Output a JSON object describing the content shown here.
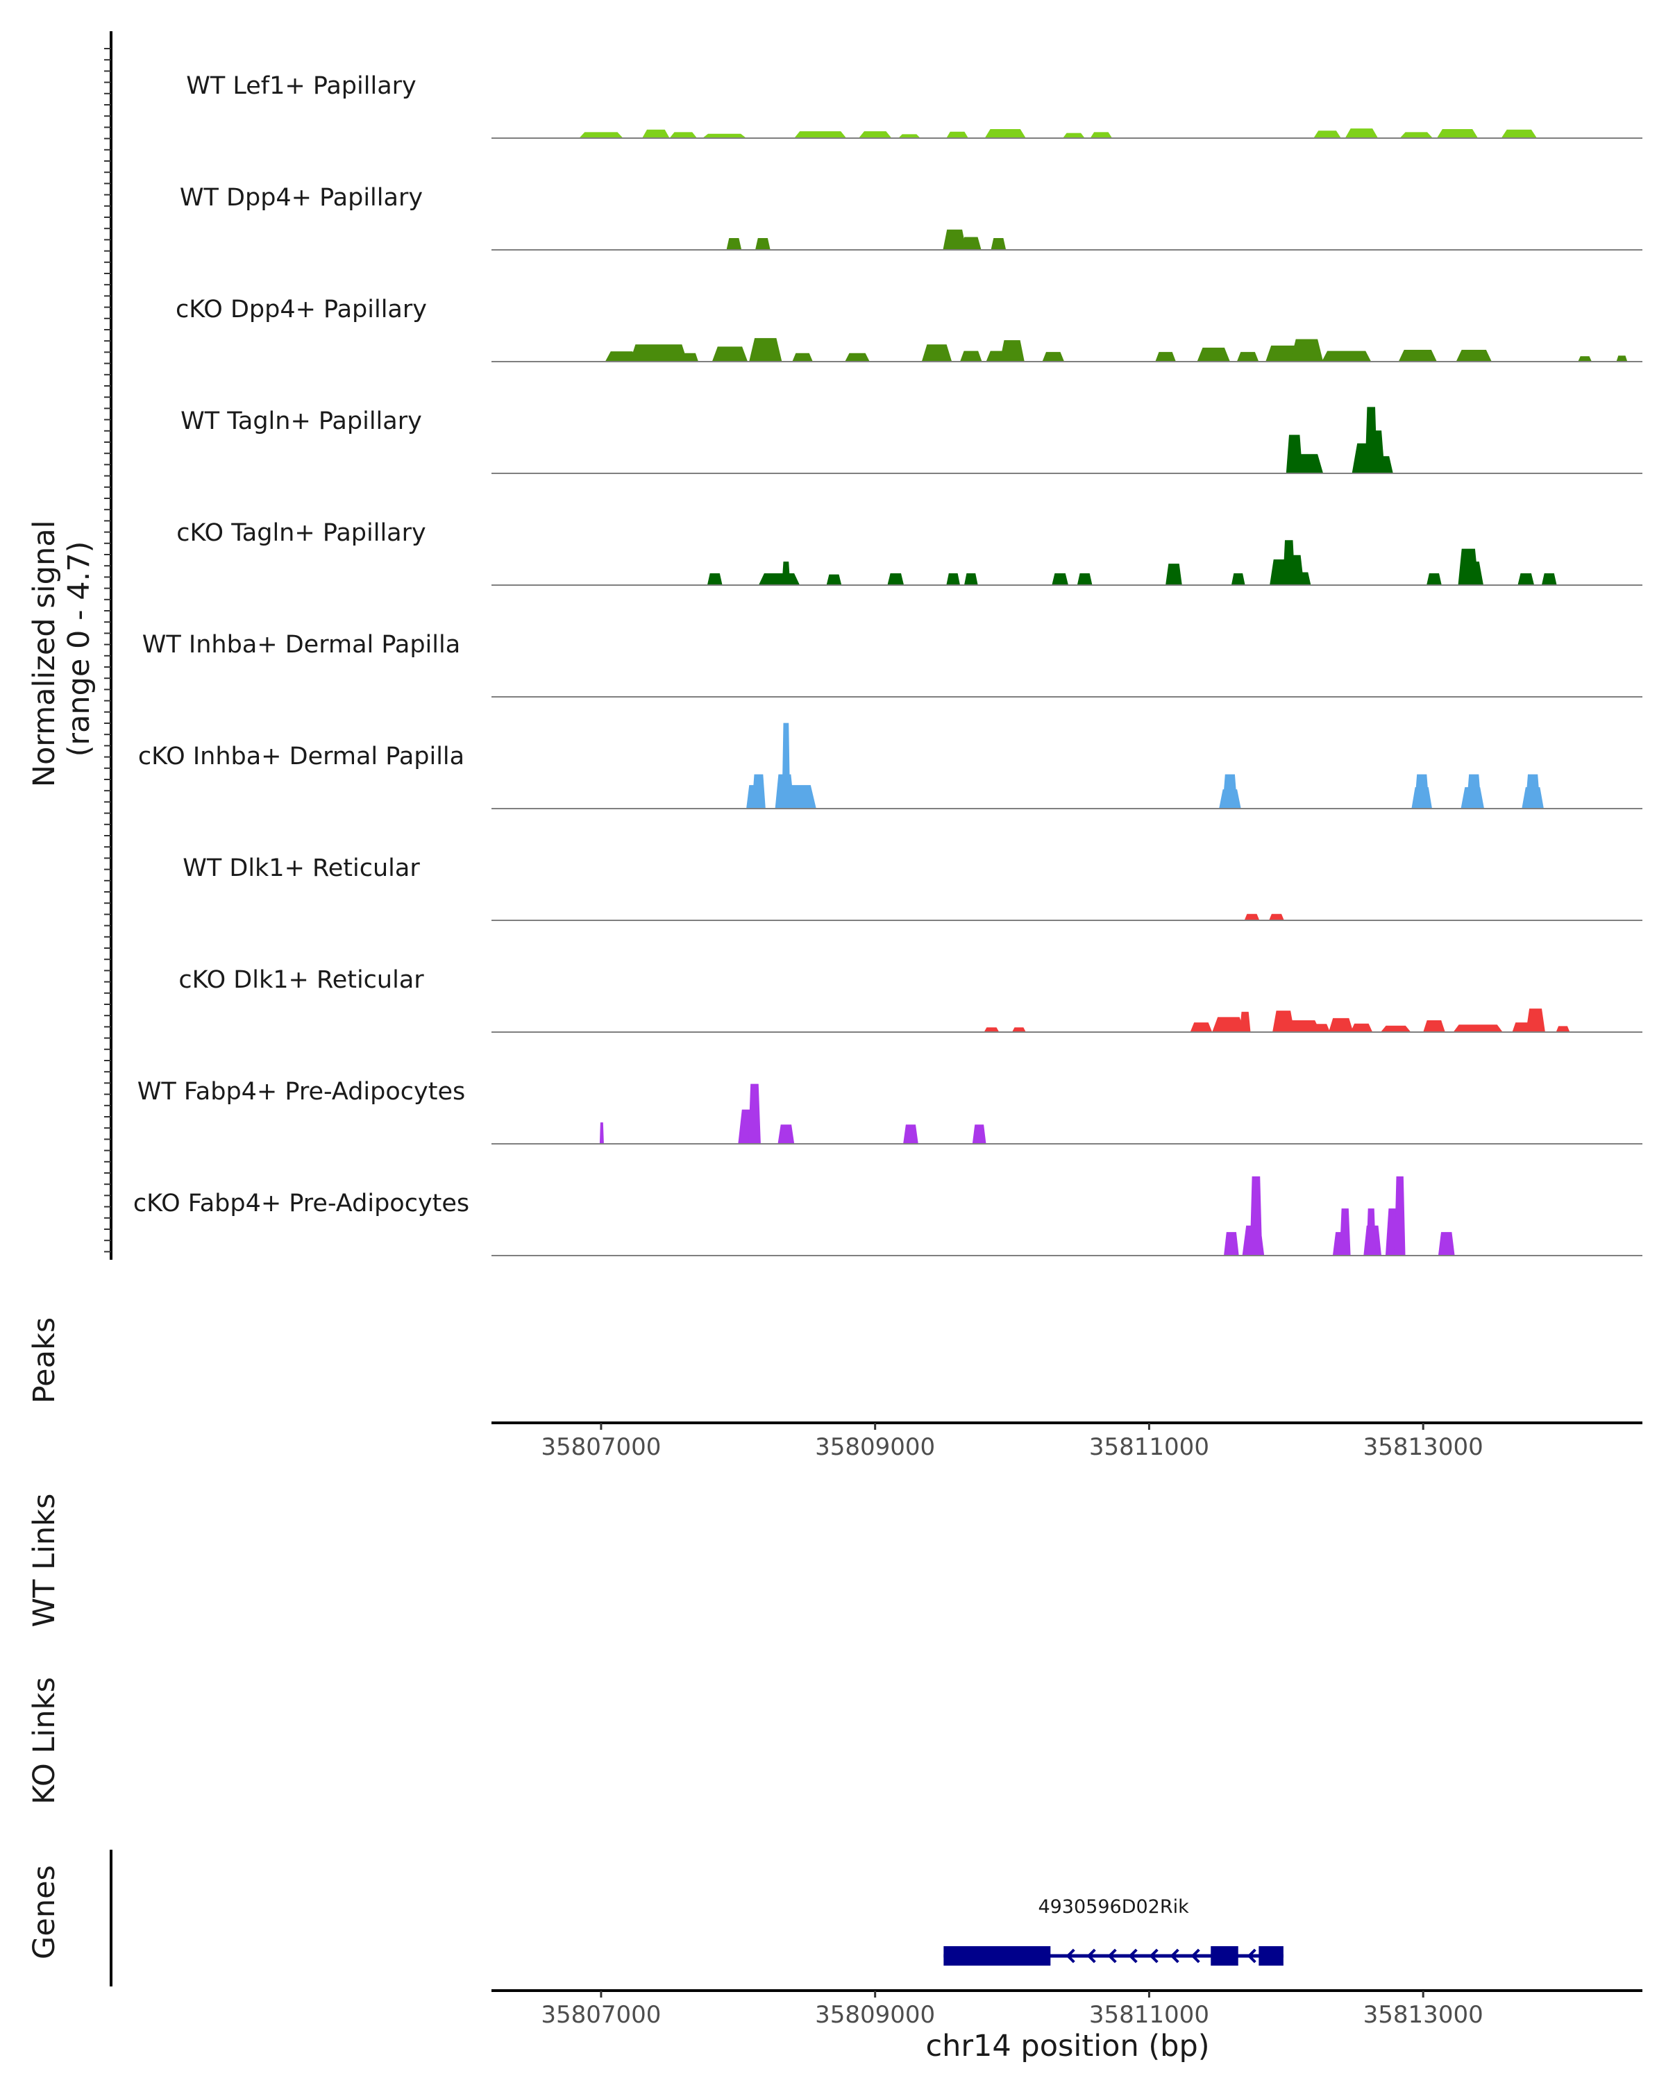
{
  "chart_data": {
    "type": "area",
    "region": {
      "chromosome": "chr14",
      "start": 35806200,
      "end": 35814600
    },
    "y_axis": {
      "title_line1": "Normalized signal",
      "title_line2": "(range 0 - 4.7)",
      "range": [
        0,
        4.7
      ]
    },
    "x_axis": {
      "title": "chr14 position (bp)",
      "ticks": [
        35807000,
        35809000,
        35811000,
        35813000
      ],
      "tick_labels": [
        "35807000",
        "35809000",
        "35811000",
        "35813000"
      ]
    },
    "panel_labels": {
      "peaks": "Peaks",
      "wt_links": "WT Links",
      "ko_links": "KO Links",
      "genes": "Genes"
    },
    "tracks": [
      {
        "name": "WT Lef1+ Papillary",
        "color": "#7fd11b",
        "peaks": [
          [
            35807000,
            0.28,
            320
          ],
          [
            35807400,
            0.4,
            200
          ],
          [
            35807600,
            0.28,
            200
          ],
          [
            35807900,
            0.2,
            320
          ],
          [
            35808600,
            0.32,
            380
          ],
          [
            35809000,
            0.32,
            240
          ],
          [
            35809250,
            0.18,
            160
          ],
          [
            35809600,
            0.3,
            160
          ],
          [
            35809950,
            0.42,
            300
          ],
          [
            35810450,
            0.24,
            160
          ],
          [
            35810650,
            0.28,
            160
          ],
          [
            35812300,
            0.35,
            200
          ],
          [
            35812550,
            0.45,
            240
          ],
          [
            35812950,
            0.28,
            240
          ],
          [
            35813250,
            0.42,
            300
          ],
          [
            35813700,
            0.4,
            260
          ]
        ]
      },
      {
        "name": "WT Dpp4+ Papillary",
        "color": "#4a8c0c",
        "peaks": [
          [
            35807970,
            0.55,
            110
          ],
          [
            35808180,
            0.55,
            110
          ],
          [
            35809580,
            0.95,
            170
          ],
          [
            35809700,
            0.6,
            150
          ],
          [
            35809900,
            0.55,
            110
          ]
        ]
      },
      {
        "name": "cKO Dpp4+ Papillary",
        "color": "#4a8c0c",
        "peaks": [
          [
            35807150,
            0.48,
            240
          ],
          [
            35807420,
            0.8,
            420
          ],
          [
            35807650,
            0.4,
            120
          ],
          [
            35807940,
            0.7,
            260
          ],
          [
            35808200,
            1.1,
            240
          ],
          [
            35808470,
            0.4,
            150
          ],
          [
            35808870,
            0.4,
            180
          ],
          [
            35809450,
            0.8,
            220
          ],
          [
            35809700,
            0.5,
            160
          ],
          [
            35809900,
            0.5,
            180
          ],
          [
            35810000,
            1.0,
            180
          ],
          [
            35810300,
            0.45,
            160
          ],
          [
            35811120,
            0.45,
            150
          ],
          [
            35811470,
            0.65,
            240
          ],
          [
            35811720,
            0.45,
            160
          ],
          [
            35812050,
            0.75,
            400
          ],
          [
            35812150,
            1.05,
            240
          ],
          [
            35812440,
            0.5,
            360
          ],
          [
            35812960,
            0.55,
            280
          ],
          [
            35813370,
            0.55,
            260
          ],
          [
            35814180,
            0.25,
            100
          ],
          [
            35814450,
            0.28,
            80
          ]
        ]
      },
      {
        "name": "WT Tagln+ Papillary",
        "color": "#006400",
        "peaks": [
          [
            35812060,
            1.8,
            120
          ],
          [
            35812140,
            0.9,
            260
          ],
          [
            35812590,
            1.4,
            220
          ],
          [
            35812620,
            3.1,
            90
          ],
          [
            35812650,
            2.0,
            140
          ],
          [
            35812700,
            0.8,
            160
          ]
        ]
      },
      {
        "name": "cKO Tagln+ Papillary",
        "color": "#006400",
        "peaks": [
          [
            35807830,
            0.55,
            110
          ],
          [
            35808300,
            0.55,
            300
          ],
          [
            35808350,
            1.1,
            60
          ],
          [
            35808700,
            0.5,
            110
          ],
          [
            35809150,
            0.55,
            120
          ],
          [
            35809570,
            0.55,
            100
          ],
          [
            35809700,
            0.55,
            100
          ],
          [
            35810350,
            0.55,
            120
          ],
          [
            35810530,
            0.55,
            110
          ],
          [
            35811180,
            1.0,
            120
          ],
          [
            35811650,
            0.55,
            100
          ],
          [
            35811960,
            1.2,
            160
          ],
          [
            35812020,
            2.1,
            90
          ],
          [
            35812060,
            1.4,
            140
          ],
          [
            35812120,
            0.6,
            120
          ],
          [
            35812120,
            0.6,
            120
          ],
          [
            35813080,
            0.55,
            110
          ],
          [
            35813330,
            1.7,
            150
          ],
          [
            35813350,
            1.1,
            180
          ],
          [
            35813750,
            0.55,
            120
          ],
          [
            35813920,
            0.55,
            110
          ]
        ]
      },
      {
        "name": "WT Inhba+ Dermal Papilla",
        "color": "#5aa8e8",
        "peaks": []
      },
      {
        "name": "cKO Inhba+ Dermal Papilla",
        "color": "#5aa8e8",
        "peaks": [
          [
            35808150,
            1.6,
            100
          ],
          [
            35808120,
            1.1,
            120
          ],
          [
            35808350,
            4.0,
            60
          ],
          [
            35808340,
            1.6,
            140
          ],
          [
            35808440,
            1.1,
            260
          ],
          [
            35811590,
            1.6,
            110
          ],
          [
            35811590,
            0.9,
            160
          ],
          [
            35812990,
            1.6,
            110
          ],
          [
            35812990,
            1.0,
            150
          ],
          [
            35813370,
            1.6,
            110
          ],
          [
            35813360,
            1.0,
            170
          ],
          [
            35813800,
            1.6,
            110
          ],
          [
            35813800,
            1.0,
            160
          ]
        ]
      },
      {
        "name": "WT Dlk1+ Reticular",
        "color": "#f03a3a",
        "peaks": [
          [
            35811750,
            0.3,
            110
          ],
          [
            35811930,
            0.3,
            110
          ]
        ]
      },
      {
        "name": "cKO Dlk1+ Reticular",
        "color": "#f03a3a",
        "peaks": [
          [
            35809850,
            0.22,
            110
          ],
          [
            35810050,
            0.22,
            100
          ],
          [
            35811380,
            0.45,
            160
          ],
          [
            35811580,
            0.7,
            240
          ],
          [
            35811700,
            0.95,
            80
          ],
          [
            35811980,
            1.0,
            160
          ],
          [
            35812100,
            0.55,
            300
          ],
          [
            35812250,
            0.38,
            140
          ],
          [
            35812400,
            0.65,
            180
          ],
          [
            35812550,
            0.4,
            160
          ],
          [
            35812800,
            0.3,
            220
          ],
          [
            35813080,
            0.55,
            160
          ],
          [
            35813400,
            0.35,
            360
          ],
          [
            35813720,
            0.45,
            140
          ],
          [
            35813820,
            1.1,
            140
          ],
          [
            35814020,
            0.28,
            100
          ]
        ]
      },
      {
        "name": "WT Fabp4+ Pre-Adipocytes",
        "color": "#aa37ea",
        "peaks": [
          [
            35807005,
            1.0,
            16
          ],
          [
            35808080,
            1.6,
            160
          ],
          [
            35808120,
            2.8,
            90
          ],
          [
            35808350,
            0.9,
            120
          ],
          [
            35809260,
            0.9,
            110
          ],
          [
            35809760,
            0.9,
            100
          ]
        ]
      },
      {
        "name": "cKO Fabp4+ Pre-Adipocytes",
        "color": "#aa37ea",
        "peaks": [
          [
            35811600,
            1.1,
            110
          ],
          [
            35811780,
            3.7,
            90
          ],
          [
            35811760,
            1.4,
            160
          ],
          [
            35812400,
            1.1,
            120
          ],
          [
            35812430,
            2.2,
            80
          ],
          [
            35812630,
            1.4,
            130
          ],
          [
            35812620,
            2.2,
            70
          ],
          [
            35812790,
            2.2,
            130
          ],
          [
            35812830,
            3.7,
            80
          ],
          [
            35813170,
            1.1,
            120
          ]
        ]
      }
    ],
    "gene": {
      "name": "4930596D02Rik",
      "color": "#00008b",
      "start": 35809500,
      "end": 35811980,
      "strand": "-",
      "exons": [
        [
          35809500,
          35810280
        ],
        [
          35811450,
          35811650
        ],
        [
          35811800,
          35811980
        ]
      ]
    }
  }
}
